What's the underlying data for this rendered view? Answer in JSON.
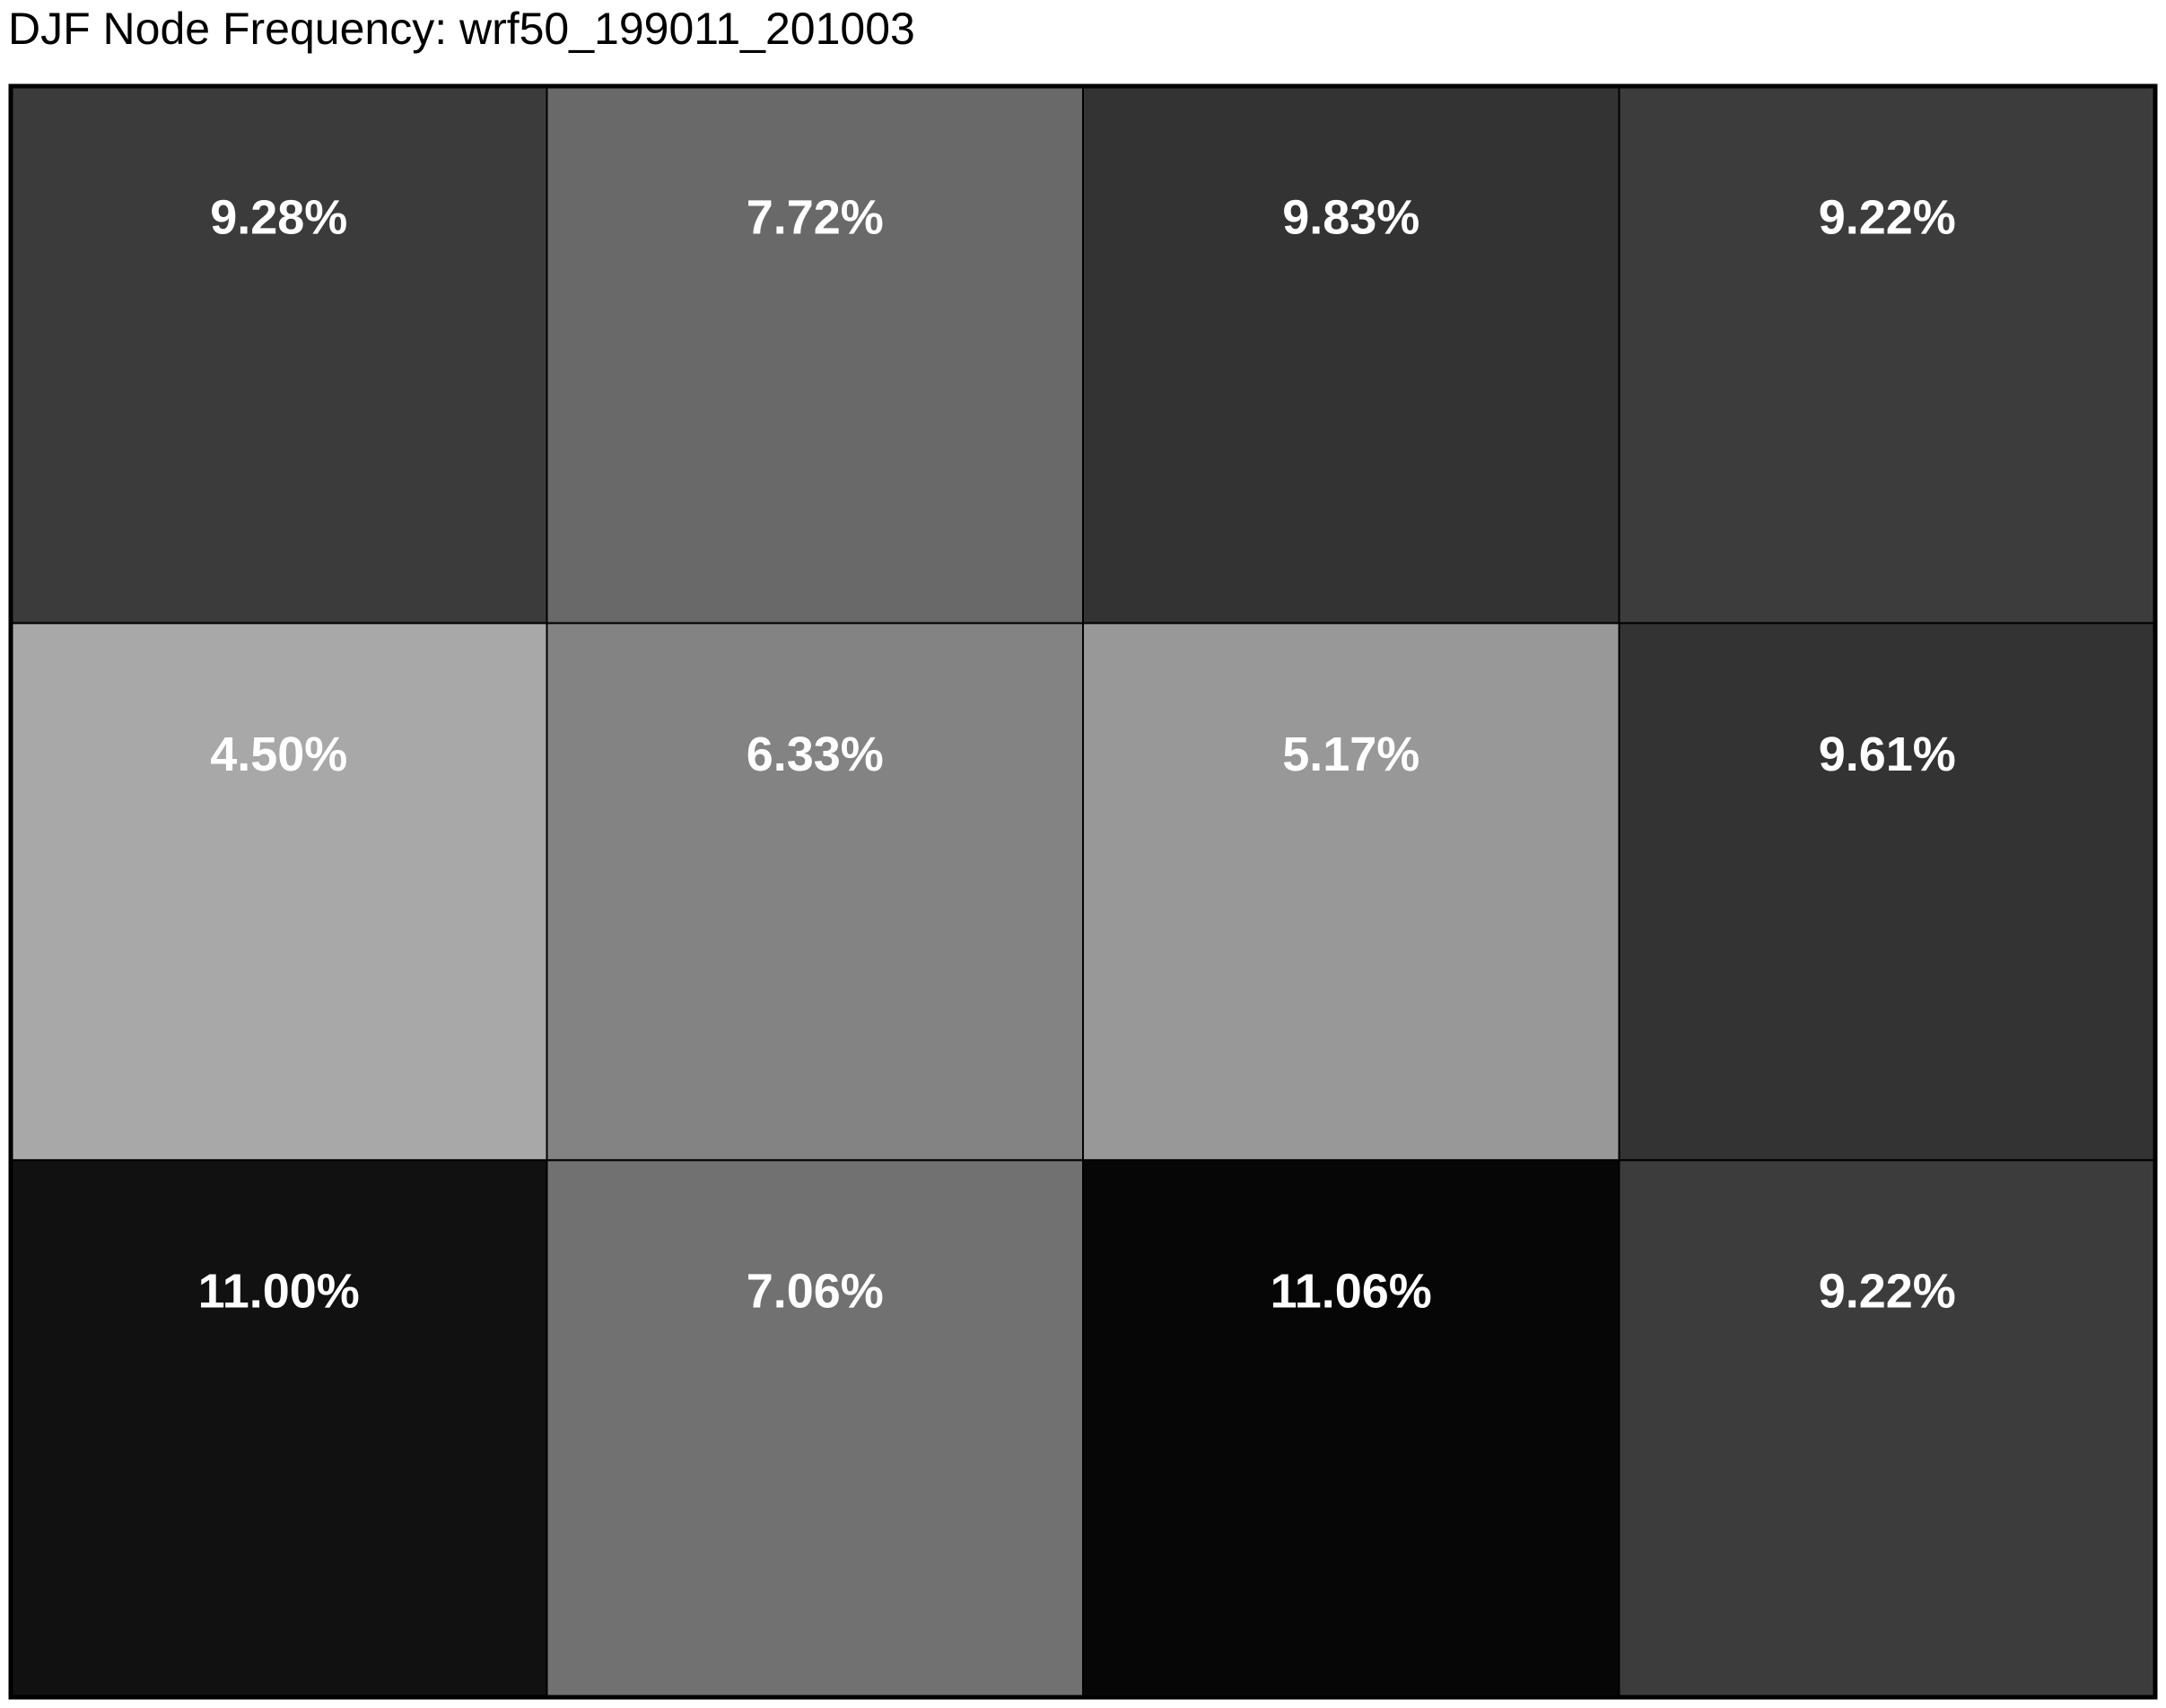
{
  "chart_data": {
    "type": "heatmap",
    "title": "DJF Node Frequency: wrf50_199011_201003",
    "rows": 3,
    "cols": 4,
    "values": [
      [
        9.28,
        7.72,
        9.83,
        9.22
      ],
      [
        4.5,
        6.33,
        5.17,
        9.61
      ],
      [
        11.0,
        7.06,
        11.06,
        9.22
      ]
    ],
    "labels": [
      [
        "9.28%",
        "7.72%",
        "9.83%",
        "9.22%"
      ],
      [
        "4.50%",
        "6.33%",
        "5.17%",
        "9.61%"
      ],
      [
        "11.00%",
        "7.06%",
        "11.06%",
        "9.22%"
      ]
    ],
    "colors": [
      [
        "#3b3b3b",
        "#696969",
        "#333333",
        "#3c3c3c"
      ],
      [
        "#a8a8a8",
        "#838383",
        "#989898",
        "#333333"
      ],
      [
        "#111111",
        "#717171",
        "#060606",
        "#3c3c3c"
      ]
    ],
    "colormap": "grayscale, darker = higher frequency",
    "grid": true,
    "legend": "none"
  }
}
